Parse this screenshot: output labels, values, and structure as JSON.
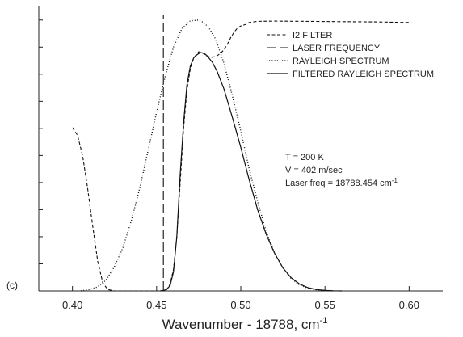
{
  "chart_data": {
    "type": "line",
    "panel_label": "(c)",
    "title": "",
    "xlabel": "Wavenumber - 18788, cm",
    "xlabel_superscript": "-1",
    "ylabel": "",
    "xlim": [
      0.38,
      0.62
    ],
    "ylim": [
      0,
      1.05
    ],
    "x_ticks": [
      0.4,
      0.45,
      0.5,
      0.55,
      0.6
    ],
    "x_tick_labels": [
      "0.40",
      "0.45",
      "0.50",
      "0.55",
      "0.60"
    ],
    "y_tick_labels": [],
    "y_minor_ticks": [
      0.1,
      0.2,
      0.3,
      0.4,
      0.5,
      0.6,
      0.7,
      0.8,
      0.9,
      1.0
    ],
    "grid": false,
    "legend_position": "top-right",
    "annotations": [
      {
        "text": "T = 200 K"
      },
      {
        "text": "V = 402 m/sec"
      },
      {
        "text": "Laser freq = 18788.454 cm",
        "superscript": "-1"
      }
    ],
    "series": [
      {
        "name": "I2 FILTER",
        "dash": "short-dash",
        "x": [
          0.4,
          0.403,
          0.406,
          0.409,
          0.412,
          0.415,
          0.418,
          0.421,
          0.425,
          0.43,
          0.435,
          0.44,
          0.445,
          0.448,
          0.45,
          0.452,
          0.454,
          0.456,
          0.458,
          0.46,
          0.462,
          0.464,
          0.466,
          0.468,
          0.47,
          0.472,
          0.475,
          0.478,
          0.48,
          0.483,
          0.486,
          0.488,
          0.49,
          0.492,
          0.494,
          0.496,
          0.498,
          0.5,
          0.503,
          0.505,
          0.51,
          0.52,
          0.54,
          0.56,
          0.58,
          0.6
        ],
        "y": [
          0.603,
          0.575,
          0.5,
          0.38,
          0.24,
          0.11,
          0.03,
          0.005,
          0.0,
          0.0,
          0.0,
          0.0,
          0.0,
          0.0,
          0.0,
          0.0,
          0.0,
          0.005,
          0.025,
          0.08,
          0.2,
          0.4,
          0.6,
          0.74,
          0.82,
          0.86,
          0.883,
          0.876,
          0.866,
          0.862,
          0.868,
          0.878,
          0.89,
          0.91,
          0.935,
          0.955,
          0.97,
          0.978,
          0.984,
          0.991,
          0.995,
          0.996,
          0.995,
          0.994,
          0.993,
          0.991
        ]
      },
      {
        "name": "LASER FREQUENCY",
        "dash": "long-dash",
        "x": [
          0.454,
          0.454
        ],
        "y": [
          0.0,
          1.02
        ]
      },
      {
        "name": "RAYLEIGH SPECTRUM",
        "dash": "dotted",
        "x": [
          0.405,
          0.41,
          0.415,
          0.42,
          0.425,
          0.43,
          0.435,
          0.44,
          0.445,
          0.45,
          0.455,
          0.46,
          0.465,
          0.47,
          0.475,
          0.478,
          0.481,
          0.485,
          0.49,
          0.495,
          0.5,
          0.505,
          0.51,
          0.515,
          0.52,
          0.525,
          0.53,
          0.535,
          0.54,
          0.545,
          0.55,
          0.555
        ],
        "y": [
          0.0,
          0.005,
          0.015,
          0.04,
          0.09,
          0.16,
          0.26,
          0.38,
          0.52,
          0.66,
          0.79,
          0.9,
          0.968,
          0.997,
          1.0,
          0.99,
          0.972,
          0.93,
          0.84,
          0.72,
          0.59,
          0.45,
          0.33,
          0.22,
          0.14,
          0.085,
          0.045,
          0.022,
          0.01,
          0.004,
          0.0015,
          0.0
        ]
      },
      {
        "name": "FILTERED RAYLEIGH SPECTRUM",
        "dash": "solid",
        "x": [
          0.452,
          0.454,
          0.456,
          0.458,
          0.46,
          0.462,
          0.464,
          0.466,
          0.468,
          0.47,
          0.472,
          0.474,
          0.476,
          0.478,
          0.48,
          0.483,
          0.486,
          0.49,
          0.495,
          0.5,
          0.505,
          0.51,
          0.515,
          0.52,
          0.525,
          0.53,
          0.535,
          0.54,
          0.545,
          0.55,
          0.555,
          0.56
        ],
        "y": [
          0.0,
          0.002,
          0.005,
          0.02,
          0.07,
          0.2,
          0.43,
          0.62,
          0.76,
          0.83,
          0.86,
          0.872,
          0.88,
          0.878,
          0.868,
          0.845,
          0.81,
          0.745,
          0.64,
          0.53,
          0.41,
          0.3,
          0.21,
          0.14,
          0.085,
          0.048,
          0.025,
          0.012,
          0.005,
          0.002,
          0.0007,
          0.0
        ]
      }
    ]
  }
}
